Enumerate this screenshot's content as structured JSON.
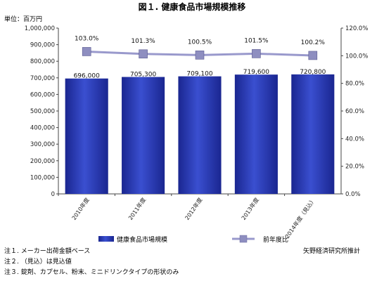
{
  "chart_data": {
    "type": "bar",
    "title": "図１. 健康食品市場規模推移",
    "unit_label": "単位：百万円",
    "categories": [
      "2010年度",
      "2011年度",
      "2012年度",
      "2013年度",
      "2014年度（見込）"
    ],
    "series": [
      {
        "name": "健康食品市場規模",
        "type": "bar",
        "axis": "left",
        "values": [
          696000,
          705300,
          709100,
          719600,
          720800
        ],
        "labels": [
          "696,000",
          "705,300",
          "709,100",
          "719,600",
          "720,800"
        ],
        "color": "#2233a8"
      },
      {
        "name": "前年度比",
        "type": "line",
        "axis": "right",
        "values": [
          103.0,
          101.3,
          100.5,
          101.5,
          100.2
        ],
        "labels": [
          "103.0%",
          "101.3%",
          "100.5%",
          "101.5%",
          "100.2%"
        ],
        "color": "#9999cc"
      }
    ],
    "y_left": {
      "range": [
        0,
        1000000
      ],
      "ticks": [
        "0",
        "100,000",
        "200,000",
        "300,000",
        "400,000",
        "500,000",
        "600,000",
        "700,000",
        "800,000",
        "900,000",
        "1,000,000"
      ]
    },
    "y_right": {
      "range": [
        0,
        120
      ],
      "ticks": [
        "0.0%",
        "20.0%",
        "40.0%",
        "60.0%",
        "80.0%",
        "100.0%",
        "120.0%"
      ]
    },
    "grid": false,
    "legend_position": "bottom"
  },
  "notes": [
    "注１. メーカー出荷金額ベース",
    "注２. （見込）は見込値",
    "注３. 錠剤、カプセル、粉末、ミニドリンクタイプの形状のみ"
  ],
  "source": "矢野経済研究所推計"
}
